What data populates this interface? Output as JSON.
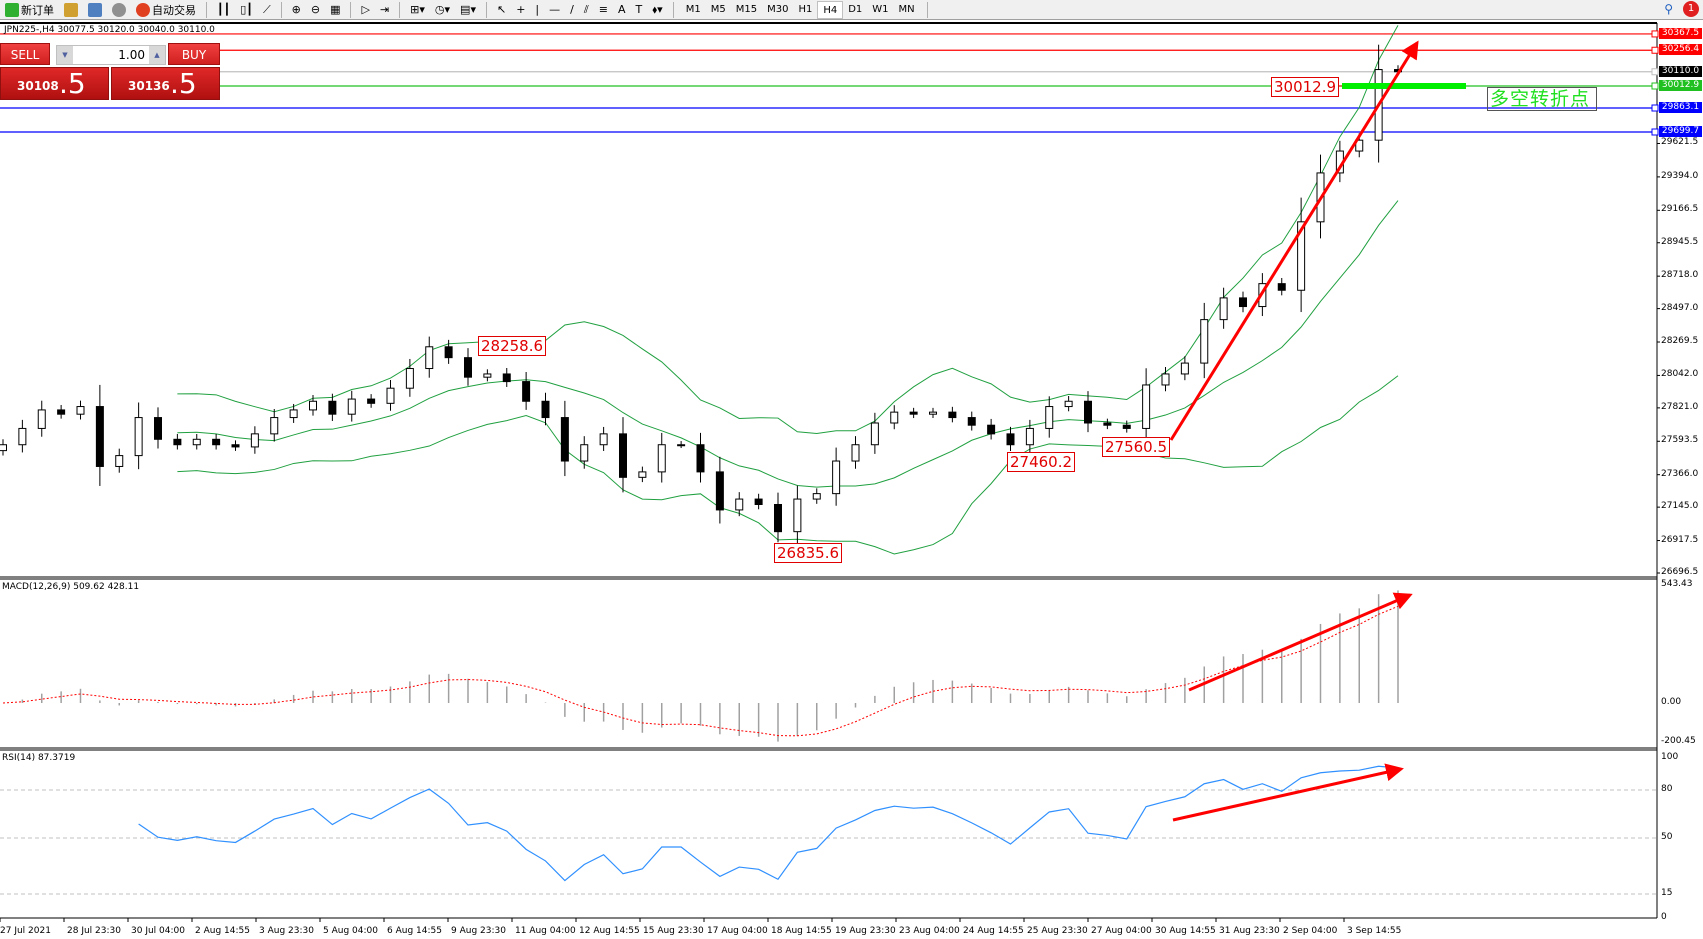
{
  "toolbar": {
    "new_order_label": "新订单",
    "auto_trading_label": "自动交易",
    "timeframes": [
      "M1",
      "M5",
      "M15",
      "M30",
      "H1",
      "H4",
      "D1",
      "W1",
      "MN"
    ],
    "active_timeframe": "H4",
    "notification_count": "1"
  },
  "chart_title": "JPN225-,H4  30077.5 30120.0 30040.0 30110.0",
  "one_click": {
    "sell_label": "SELL",
    "buy_label": "BUY",
    "volume": "1.00",
    "sell_price_main": "30108",
    "sell_price_big": ".5",
    "buy_price_main": "30136",
    "buy_price_big": ".5"
  },
  "price_axis": [
    "29621.5",
    "29394.0",
    "29166.5",
    "28945.5",
    "28718.0",
    "28497.0",
    "28269.5",
    "28042.0",
    "27821.0",
    "27593.5",
    "27366.0",
    "27145.0",
    "26917.5",
    "26696.5"
  ],
  "horizontal_lines": [
    {
      "price": "30367.5",
      "color": "#ff0000"
    },
    {
      "price": "30256.4",
      "color": "#ff0000"
    },
    {
      "price": "30110.0",
      "color": "#c0c0c0",
      "tag_color": "#000000"
    },
    {
      "price": "30012.9",
      "color": "#20c020",
      "tag_color": "#20c020"
    },
    {
      "price": "29863.1",
      "color": "#0000ff"
    },
    {
      "price": "29699.7",
      "color": "#0000ff"
    }
  ],
  "annotations": {
    "high_label": "28258.6",
    "low_label": "26835.6",
    "swing_low_1": "27460.2",
    "swing_low_2": "27560.5",
    "pivot_price": "30012.9",
    "pivot_text": "多空转折点"
  },
  "macd": {
    "label": "MACD(12,26,9) 509.62 428.11",
    "axis": [
      "543.43",
      "0.00",
      "-200.45"
    ]
  },
  "rsi": {
    "label": "RSI(14) 87.3719",
    "axis": [
      "100",
      "80",
      "50",
      "15",
      "0"
    ]
  },
  "time_axis": [
    "27 Jul 2021",
    "28 Jul 23:30",
    "30 Jul 04:00",
    "2 Aug 14:55",
    "3 Aug 23:30",
    "5 Aug 04:00",
    "6 Aug 14:55",
    "9 Aug 23:30",
    "11 Aug 04:00",
    "12 Aug 14:55",
    "15 Aug 23:30",
    "17 Aug 04:00",
    "18 Aug 14:55",
    "19 Aug 23:30",
    "23 Aug 04:00",
    "24 Aug 14:55",
    "25 Aug 23:30",
    "27 Aug 04:00",
    "30 Aug 14:55",
    "31 Aug 23:30",
    "2 Sep 04:00",
    "3 Sep 14:55"
  ],
  "colors": {
    "bull": "#ffffff",
    "bear": "#000000",
    "bands": "#20a040",
    "arrow": "#ff0000",
    "rsi": "#3090ff",
    "macd_signal": "#ff0000"
  },
  "chart_data": {
    "type": "candlestick",
    "symbol": "JPN225-",
    "timeframe": "H4",
    "closes": [
      27570,
      27681,
      27807,
      27778,
      27830,
      27422,
      27496,
      27755,
      27607,
      27570,
      27607,
      27570,
      27555,
      27644,
      27755,
      27807,
      27866,
      27778,
      27881,
      27852,
      27955,
      28089,
      28237,
      28163,
      28030,
      28052,
      28000,
      27866,
      27755,
      27459,
      27570,
      27644,
      27348,
      27385,
      27570,
      27570,
      27385,
      27126,
      27200,
      27163,
      26978,
      27200,
      27237,
      27459,
      27570,
      27718,
      27792,
      27778,
      27792,
      27755,
      27703,
      27644,
      27570,
      27681,
      27830,
      27866,
      27718,
      27703,
      27681,
      27977,
      28052,
      28126,
      28422,
      28570,
      28511,
      28667,
      28622,
      29088,
      29421,
      29570,
      29644,
      30125,
      30110
    ],
    "ylim": [
      26696.5,
      30367.5
    ]
  }
}
